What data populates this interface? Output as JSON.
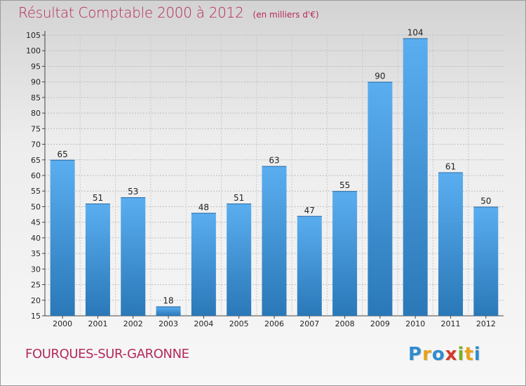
{
  "title": "Résultat Comptable 2000 à 2012",
  "subtitle": "(en milliers d'€)",
  "commune": "FOURQUES-SUR-GARONNE",
  "logo": {
    "text": "Proxiti",
    "letters": [
      {
        "ch": "P",
        "color": "#2f8ccf"
      },
      {
        "ch": "r",
        "color": "#e8a11a"
      },
      {
        "ch": "o",
        "color": "#2f8ccf"
      },
      {
        "ch": "x",
        "color": "#d43a2a"
      },
      {
        "ch": "i",
        "color": "#7bb026"
      },
      {
        "ch": "t",
        "color": "#e8a11a"
      },
      {
        "ch": "i",
        "color": "#2f8ccf"
      }
    ]
  },
  "colors": {
    "accent": "#b5285c",
    "bar_top": "#5aaef0",
    "bar_bottom": "#2a78b8"
  },
  "chart_data": {
    "type": "bar",
    "title": "Résultat Comptable 2000 à 2012",
    "subtitle": "(en milliers d'€)",
    "categories": [
      "2000",
      "2001",
      "2002",
      "2003",
      "2004",
      "2005",
      "2006",
      "2007",
      "2008",
      "2009",
      "2010",
      "2011",
      "2012"
    ],
    "values": [
      65,
      51,
      53,
      18,
      48,
      51,
      63,
      47,
      55,
      90,
      104,
      61,
      50
    ],
    "ylim": [
      15,
      105
    ],
    "yticks": [
      15,
      20,
      25,
      30,
      35,
      40,
      45,
      50,
      55,
      60,
      65,
      70,
      75,
      80,
      85,
      90,
      95,
      100,
      105
    ],
    "grid": true,
    "legend": "none"
  }
}
